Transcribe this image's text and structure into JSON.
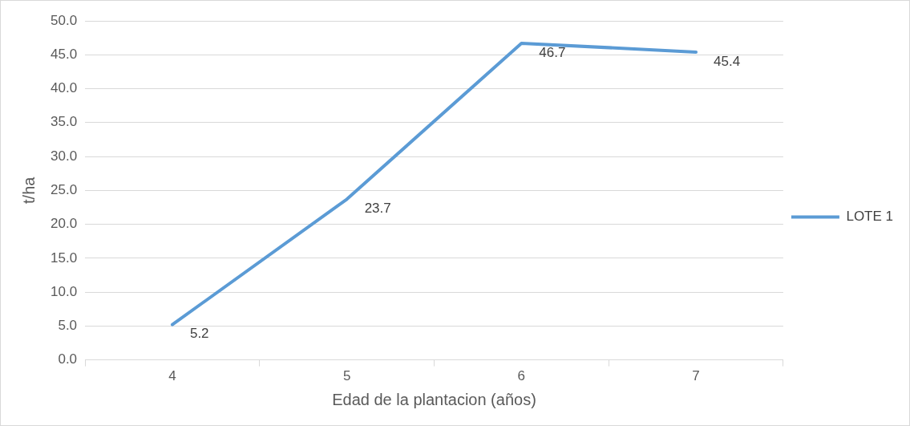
{
  "chart_data": {
    "type": "line",
    "xlabel": "Edad de la plantacion (años)",
    "ylabel": "t/ha",
    "categories": [
      "4",
      "5",
      "6",
      "7"
    ],
    "series": [
      {
        "name": "LOTE 1",
        "color": "#5b9bd5",
        "values": [
          5.2,
          23.7,
          46.7,
          45.4
        ]
      }
    ],
    "ylim": [
      0,
      50
    ],
    "yticks": [
      {
        "value": 0,
        "label": "0.0"
      },
      {
        "value": 5,
        "label": "5.0"
      },
      {
        "value": 10,
        "label": "10.0"
      },
      {
        "value": 15,
        "label": "15.0"
      },
      {
        "value": 20,
        "label": "20.0"
      },
      {
        "value": 25,
        "label": "25.0"
      },
      {
        "value": 30,
        "label": "30.0"
      },
      {
        "value": 35,
        "label": "35.0"
      },
      {
        "value": 40,
        "label": "40.0"
      },
      {
        "value": 45,
        "label": "45.0"
      },
      {
        "value": 50,
        "label": "50.0"
      }
    ],
    "grid": "y",
    "legend": "right",
    "marker": "none",
    "line_style": "solid",
    "data_labels": true
  }
}
